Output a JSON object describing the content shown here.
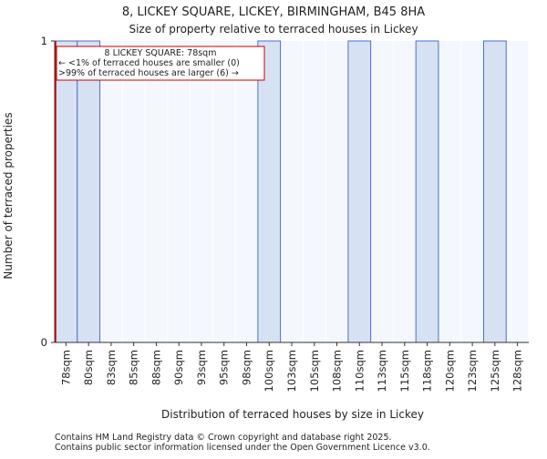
{
  "chart_data": {
    "type": "bar",
    "title": "8, LICKEY SQUARE, LICKEY, BIRMINGHAM, B45 8HA",
    "subtitle": "Size of property relative to terraced houses in Lickey",
    "xlabel": "Distribution of terraced houses by size in Lickey",
    "ylabel": "Number of terraced properties",
    "categories": [
      "78sqm",
      "80sqm",
      "83sqm",
      "85sqm",
      "88sqm",
      "90sqm",
      "93sqm",
      "95sqm",
      "98sqm",
      "100sqm",
      "103sqm",
      "105sqm",
      "108sqm",
      "110sqm",
      "113sqm",
      "115sqm",
      "118sqm",
      "120sqm",
      "123sqm",
      "125sqm",
      "128sqm"
    ],
    "values": [
      1,
      1,
      0,
      0,
      0,
      0,
      0,
      0,
      0,
      1,
      0,
      0,
      0,
      1,
      0,
      0,
      1,
      0,
      0,
      1,
      0
    ],
    "ylim": [
      0,
      1
    ],
    "yticks": [
      0,
      1
    ],
    "grid": true,
    "bar_color": "#d6e1f4",
    "bar_edge_color": "#4a72c2",
    "plot_background": "#f5f7ff",
    "marker": {
      "category_index": 0,
      "color": "#cc0000"
    },
    "annotation": {
      "lines": [
        "8 LICKEY SQUARE: 78sqm",
        "← <1% of terraced houses are smaller (0)",
        ">99% of terraced houses are larger (6) →"
      ]
    }
  },
  "footer": {
    "line1": "Contains HM Land Registry data © Crown copyright and database right 2025.",
    "line2": "Contains public sector information licensed under the Open Government Licence v3.0."
  }
}
